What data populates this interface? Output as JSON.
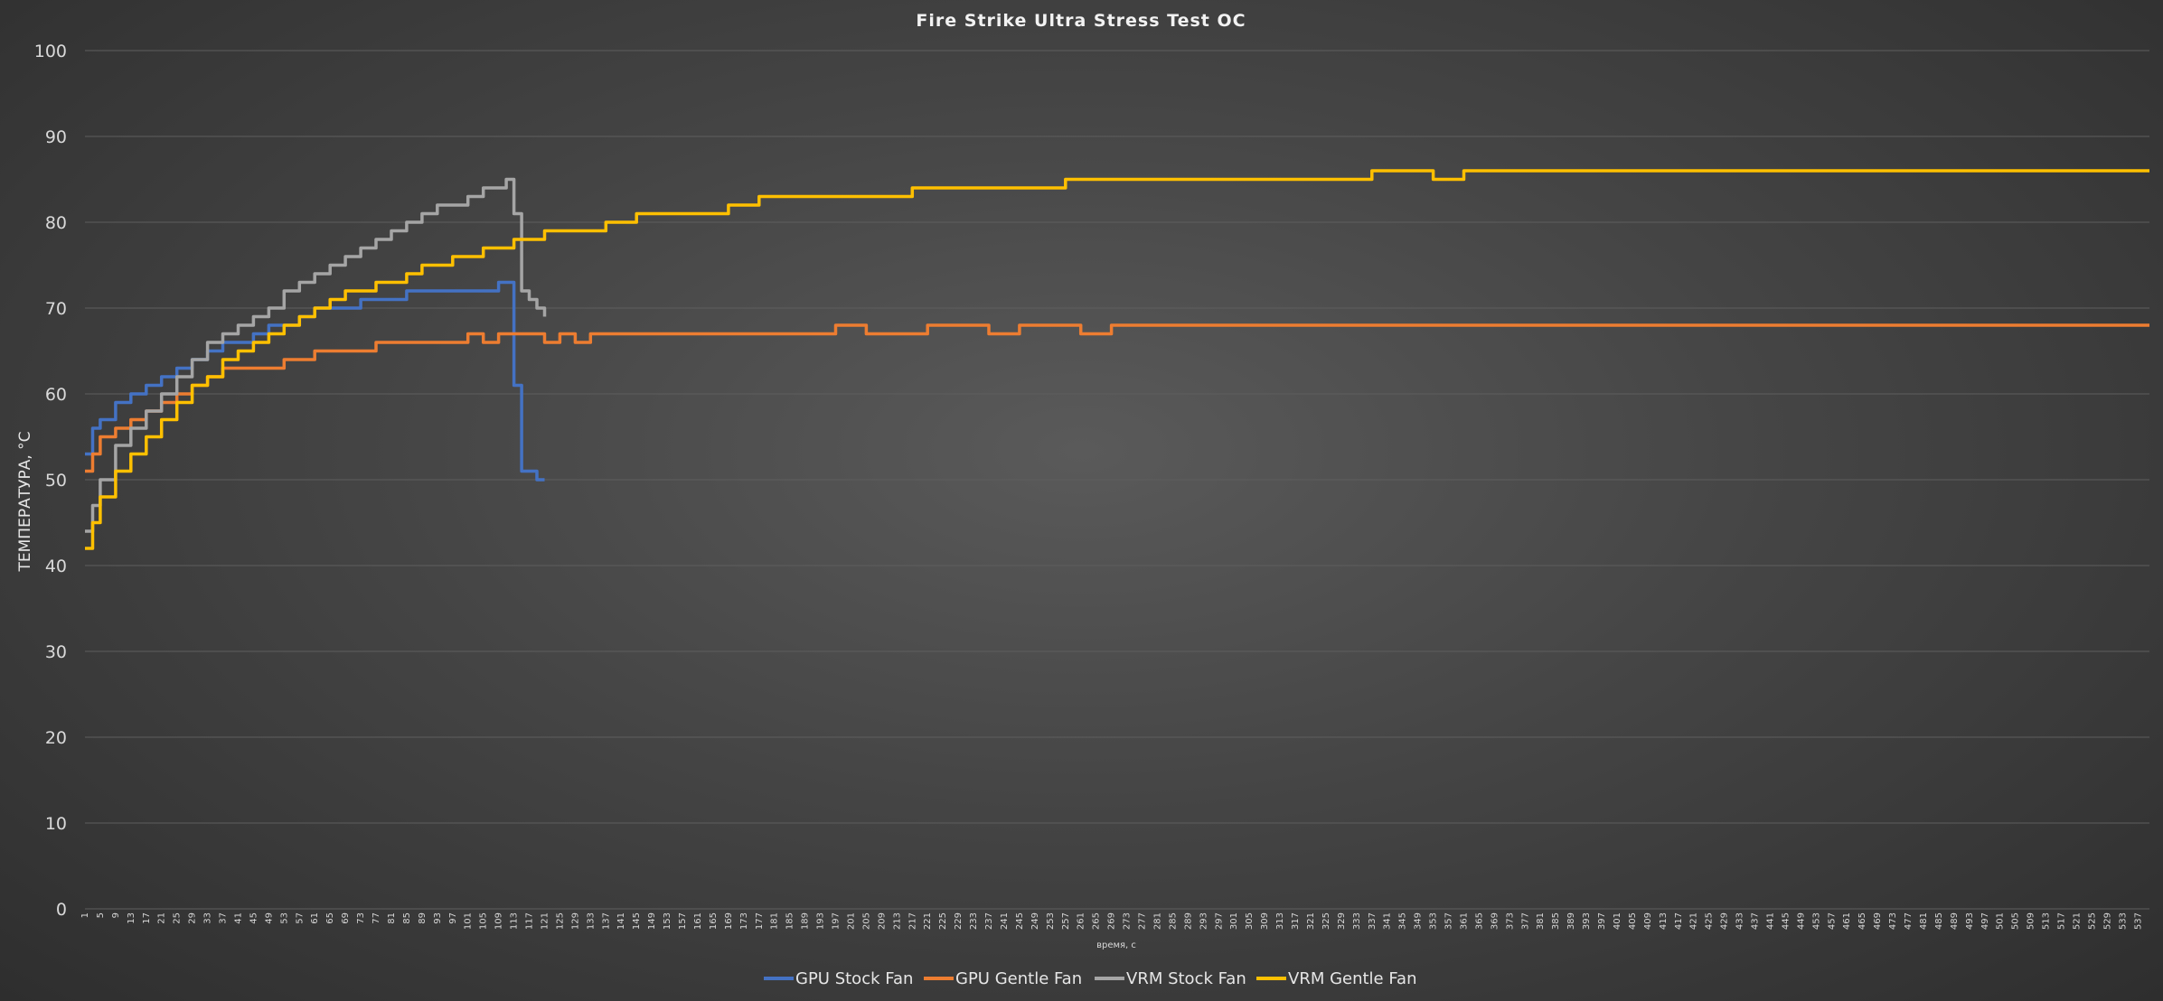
{
  "chart_data": {
    "type": "line",
    "title": "Fire Strike Ultra Stress Test OC",
    "xlabel": "время, с",
    "ylabel": "ТЕМПЕРАТУРА, °С",
    "ylim": [
      0,
      100
    ],
    "yticks": [
      0,
      10,
      20,
      30,
      40,
      50,
      60,
      70,
      80,
      90,
      100
    ],
    "xlim": [
      1,
      540
    ],
    "xtick_start": 1,
    "xtick_step": 4,
    "xtick_end": 537,
    "grid": true,
    "legend_position": "bottom",
    "series": [
      {
        "name": "GPU Stock Fan",
        "color": "#4472C4",
        "x": [
          1,
          3,
          5,
          9,
          13,
          17,
          21,
          25,
          29,
          33,
          37,
          41,
          45,
          49,
          53,
          57,
          61,
          65,
          69,
          73,
          77,
          81,
          85,
          89,
          93,
          97,
          101,
          105,
          109,
          111,
          113,
          115,
          117,
          119,
          121
        ],
        "y": [
          53,
          56,
          57,
          59,
          60,
          61,
          62,
          63,
          64,
          65,
          66,
          66,
          67,
          68,
          68,
          69,
          70,
          70,
          70,
          71,
          71,
          71,
          72,
          72,
          72,
          72,
          72,
          72,
          73,
          73,
          61,
          51,
          51,
          50,
          50
        ]
      },
      {
        "name": "GPU Gentle Fan",
        "color": "#ED7D31",
        "x": [
          1,
          3,
          5,
          9,
          13,
          17,
          21,
          25,
          29,
          33,
          37,
          41,
          45,
          49,
          53,
          57,
          61,
          65,
          69,
          73,
          77,
          81,
          85,
          89,
          93,
          97,
          101,
          105,
          109,
          113,
          117,
          121,
          125,
          129,
          133,
          137,
          141,
          149,
          157,
          165,
          173,
          181,
          189,
          197,
          205,
          213,
          221,
          229,
          237,
          245,
          253,
          261,
          269,
          277,
          285,
          293,
          301,
          309,
          317,
          325,
          333,
          341,
          349,
          357,
          365,
          373,
          381,
          389,
          397,
          405,
          413,
          421,
          429,
          437,
          445,
          453,
          461,
          469,
          477,
          485,
          493,
          501,
          509,
          517,
          525,
          533,
          540
        ],
        "y": [
          51,
          53,
          55,
          56,
          57,
          58,
          59,
          60,
          61,
          62,
          63,
          63,
          63,
          63,
          64,
          64,
          65,
          65,
          65,
          65,
          66,
          66,
          66,
          66,
          66,
          66,
          67,
          66,
          67,
          67,
          67,
          66,
          67,
          66,
          67,
          67,
          67,
          67,
          67,
          67,
          67,
          67,
          67,
          68,
          67,
          67,
          68,
          68,
          67,
          68,
          68,
          67,
          68,
          68,
          68,
          68,
          68,
          68,
          68,
          68,
          68,
          68,
          68,
          68,
          68,
          68,
          68,
          68,
          68,
          68,
          68,
          68,
          68,
          68,
          68,
          68,
          68,
          68,
          68,
          68,
          68,
          68,
          68,
          68,
          68,
          68,
          68
        ]
      },
      {
        "name": "VRM Stock Fan",
        "color": "#A5A5A5",
        "x": [
          1,
          3,
          5,
          9,
          13,
          17,
          21,
          25,
          29,
          33,
          37,
          41,
          45,
          49,
          53,
          57,
          61,
          65,
          69,
          73,
          77,
          81,
          85,
          89,
          93,
          97,
          101,
          105,
          109,
          111,
          113,
          115,
          117,
          119,
          121
        ],
        "y": [
          44,
          47,
          50,
          54,
          56,
          58,
          60,
          62,
          64,
          66,
          67,
          68,
          69,
          70,
          72,
          73,
          74,
          75,
          76,
          77,
          78,
          79,
          80,
          81,
          82,
          82,
          83,
          84,
          84,
          85,
          81,
          72,
          71,
          70,
          69
        ]
      },
      {
        "name": "VRM Gentle Fan",
        "color": "#FFC000",
        "x": [
          1,
          3,
          5,
          9,
          13,
          17,
          21,
          25,
          29,
          33,
          37,
          41,
          45,
          49,
          53,
          57,
          61,
          65,
          69,
          73,
          77,
          81,
          85,
          89,
          93,
          97,
          101,
          105,
          109,
          113,
          117,
          121,
          129,
          137,
          145,
          153,
          161,
          169,
          177,
          185,
          193,
          201,
          209,
          217,
          225,
          233,
          241,
          249,
          257,
          265,
          273,
          281,
          289,
          297,
          305,
          313,
          321,
          329,
          337,
          345,
          353,
          361,
          369,
          377,
          385,
          393,
          401,
          409,
          417,
          425,
          433,
          441,
          449,
          457,
          465,
          473,
          481,
          489,
          497,
          505,
          513,
          521,
          529,
          537,
          540
        ],
        "y": [
          42,
          45,
          48,
          51,
          53,
          55,
          57,
          59,
          61,
          62,
          64,
          65,
          66,
          67,
          68,
          69,
          70,
          71,
          72,
          72,
          73,
          73,
          74,
          75,
          75,
          76,
          76,
          77,
          77,
          78,
          78,
          79,
          79,
          80,
          81,
          81,
          81,
          82,
          83,
          83,
          83,
          83,
          83,
          84,
          84,
          84,
          84,
          84,
          85,
          85,
          85,
          85,
          85,
          85,
          85,
          85,
          85,
          85,
          86,
          86,
          85,
          86,
          86,
          86,
          86,
          86,
          86,
          86,
          86,
          86,
          86,
          86,
          86,
          86,
          86,
          86,
          86,
          86,
          86,
          86,
          86,
          86,
          86,
          86,
          86
        ]
      }
    ]
  }
}
